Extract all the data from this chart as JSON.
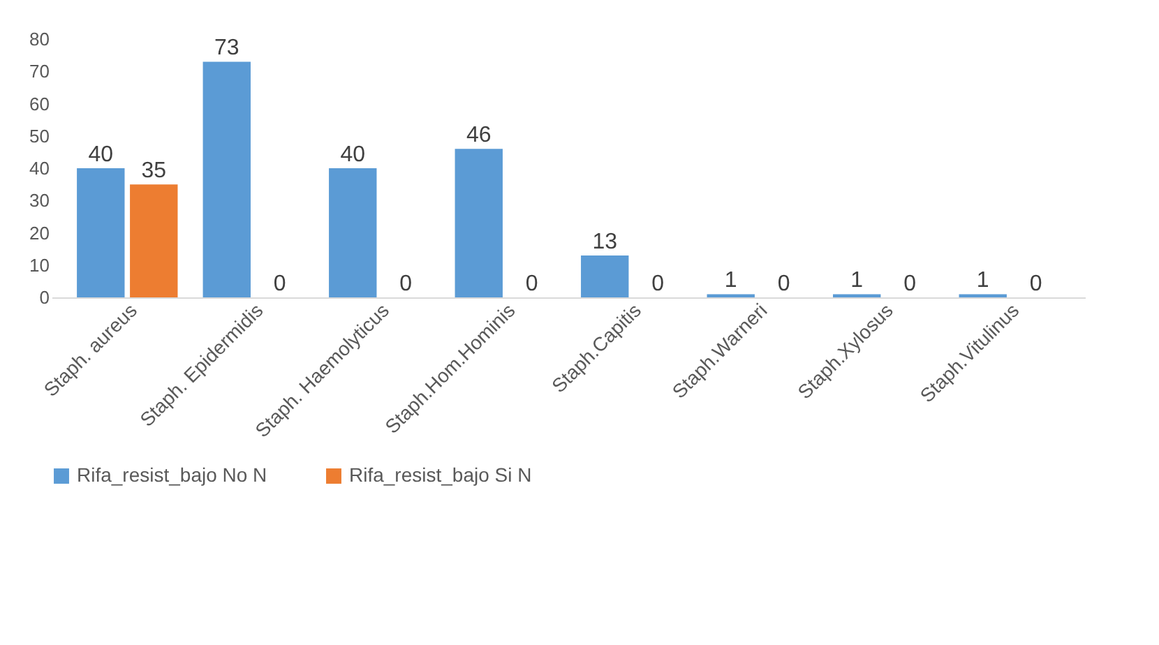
{
  "chart_data": {
    "type": "bar",
    "categories": [
      "Staph. aureus",
      "Staph. Epidermidis",
      "Staph. Haemolyticus",
      "Staph.Hom.Hominis",
      "Staph.Capitis",
      "Staph.Warneri",
      "Staph.Xylosus",
      "Staph.Vitulinus"
    ],
    "series": [
      {
        "name": "Rifa_resist_bajo No N",
        "color": "#5b9bd5",
        "values": [
          40,
          73,
          40,
          46,
          13,
          1,
          1,
          1
        ]
      },
      {
        "name": "Rifa_resist_bajo Si N",
        "color": "#ed7d31",
        "values": [
          35,
          0,
          0,
          0,
          0,
          0,
          0,
          0
        ]
      }
    ],
    "ylim": [
      0,
      80
    ],
    "yticks": [
      0,
      10,
      20,
      30,
      40,
      50,
      60,
      70,
      80
    ],
    "grid": false,
    "legend": "bottom",
    "data_labels": true
  }
}
